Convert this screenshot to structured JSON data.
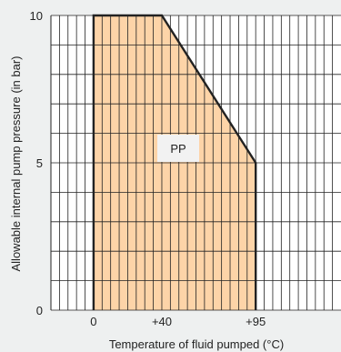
{
  "chart_data": {
    "type": "area",
    "xlabel": "Temperature of fluid pumped (°C)",
    "ylabel": "Allowable internal pump pressure (in bar)",
    "xlim": [
      -25,
      145
    ],
    "ylim": [
      0,
      10
    ],
    "x_ticks": [
      {
        "value": 0,
        "label": "0"
      },
      {
        "value": 40,
        "label": "+40"
      },
      {
        "value": 95,
        "label": "+95"
      }
    ],
    "y_ticks": [
      {
        "value": 0,
        "label": "0"
      },
      {
        "value": 5,
        "label": "5"
      },
      {
        "value": 10,
        "label": "10"
      }
    ],
    "grid": true,
    "series": [
      {
        "name": "PP",
        "points": [
          [
            0,
            0
          ],
          [
            0,
            10
          ],
          [
            40,
            10
          ],
          [
            95,
            5
          ],
          [
            95,
            0
          ]
        ]
      }
    ],
    "fill_color": "#fdd4a8",
    "line_color": "#222222",
    "grid_color": "#222222"
  }
}
